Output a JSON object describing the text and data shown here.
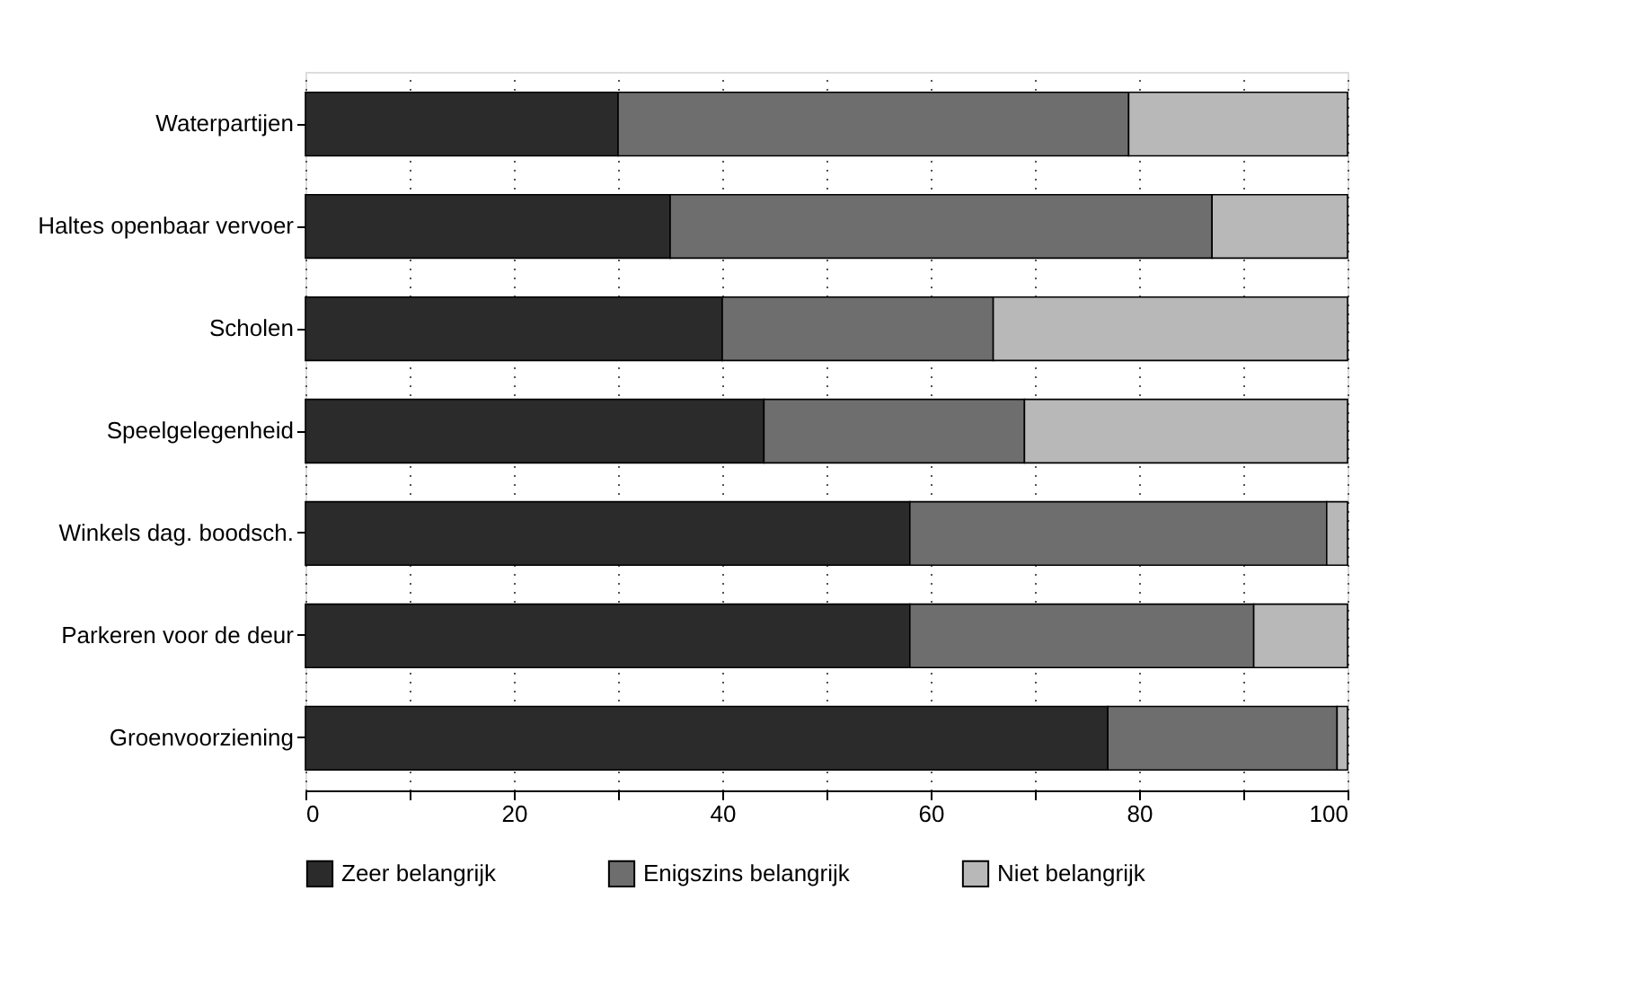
{
  "chart_data": {
    "type": "bar",
    "orientation": "horizontal",
    "stacked": true,
    "categories": [
      "Waterpartijen",
      "Haltes openbaar vervoer",
      "Scholen",
      "Speelgelegenheid",
      "Winkels dag. boodsch.",
      "Parkeren voor de deur",
      "Groenvoorziening"
    ],
    "series": [
      {
        "name": "Zeer belangrijk",
        "color": "#2b2b2b",
        "values": [
          30,
          35,
          40,
          44,
          58,
          58,
          77
        ]
      },
      {
        "name": "Enigszins belangrijk",
        "color": "#6e6e6e",
        "values": [
          49,
          52,
          26,
          25,
          40,
          33,
          22
        ]
      },
      {
        "name": "Niet belangrijk",
        "color": "#b8b8b8",
        "values": [
          21,
          13,
          34,
          31,
          2,
          9,
          1
        ]
      }
    ],
    "xlim": [
      0,
      100
    ],
    "xticks": [
      0,
      {
        "value": 10,
        "label": null
      },
      20,
      {
        "value": 30,
        "label": null
      },
      40,
      {
        "value": 50,
        "label": null
      },
      60,
      {
        "value": 70,
        "label": null
      },
      80,
      {
        "value": 90,
        "label": null
      },
      100
    ],
    "grid": "x",
    "legend": "bottom"
  }
}
